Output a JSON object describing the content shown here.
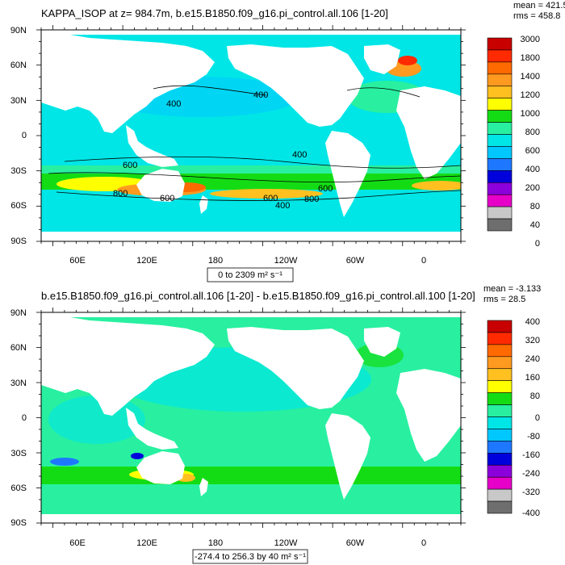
{
  "chart_data": [
    {
      "type": "heatmap",
      "title": "KAPPA_ISOP at z= 984.7m, b.e15.B1850.f09_g16.pi_control.all.106 [1-20]",
      "stats": {
        "mean_label": "mean = 421.5",
        "rms_label": "rms = 458.8"
      },
      "y_ticks": [
        "90N",
        "60N",
        "30N",
        "0",
        "30S",
        "60S",
        "90S"
      ],
      "x_ticks": [
        "60E",
        "120E",
        "180",
        "120W",
        "60W",
        "0"
      ],
      "colorbar_labels": [
        "3000",
        "1800",
        "1400",
        "1200",
        "1000",
        "800",
        "600",
        "400",
        "200",
        "80",
        "40",
        "0"
      ],
      "colorbar_colors": [
        "#c80000",
        "#ff2a00",
        "#ff6a00",
        "#ff9a20",
        "#ffc020",
        "#ffff00",
        "#14dc14",
        "#28f0a0",
        "#00e6e6",
        "#00c8ff",
        "#1e78ff",
        "#0000dc",
        "#8c00dc",
        "#e600c8",
        "#c8c8c8",
        "#6e6e6e"
      ],
      "contour_labels": [
        "400",
        "400",
        "400",
        "600",
        "800",
        "600",
        "600",
        "800",
        "600",
        "400"
      ],
      "range_label": "0 to 2309 m² s⁻¹",
      "stats_summary": {
        "min": 0,
        "max": 2309,
        "mean": 421.5,
        "rms": 458.8
      }
    },
    {
      "type": "heatmap",
      "title": "b.e15.B1850.f09_g16.pi_control.all.106 [1-20] - b.e15.B1850.f09_g16.pi_control.all.100 [1-20]",
      "stats": {
        "mean_label": "mean = -3.133",
        "rms_label": "rms = 28.5"
      },
      "y_ticks": [
        "90N",
        "60N",
        "30N",
        "0",
        "30S",
        "60S",
        "90S"
      ],
      "x_ticks": [
        "60E",
        "120E",
        "180",
        "120W",
        "60W",
        "0"
      ],
      "colorbar_labels": [
        "400",
        "320",
        "240",
        "160",
        "80",
        "0",
        "-80",
        "-160",
        "-240",
        "-320",
        "-400"
      ],
      "colorbar_colors": [
        "#c80000",
        "#ff2a00",
        "#ff6a00",
        "#ff9a20",
        "#ffc020",
        "#ffff00",
        "#14dc14",
        "#28f0a0",
        "#00e6e6",
        "#00c8ff",
        "#1e78ff",
        "#0000dc",
        "#8c00dc",
        "#e600c8",
        "#c8c8c8",
        "#6e6e6e"
      ],
      "range_label": "-274.4 to 256.3 by 40 m² s⁻¹",
      "stats_summary": {
        "min": -274.4,
        "max": 256.3,
        "mean": -3.133,
        "rms": 28.5,
        "interval": 40
      }
    }
  ]
}
